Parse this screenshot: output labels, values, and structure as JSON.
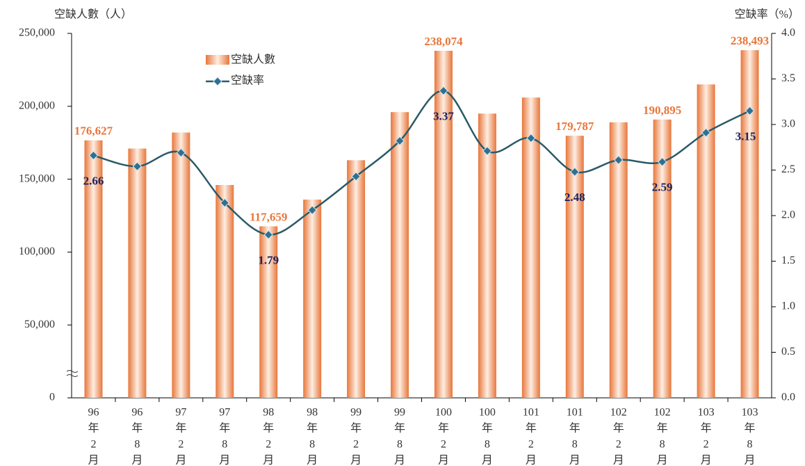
{
  "chart_data": {
    "type": "bar-line",
    "y_label": "空缺人數（人）",
    "y2_label": "空缺率（%）",
    "categories": [
      [
        "96",
        "年",
        "2",
        "月"
      ],
      [
        "96",
        "年",
        "8",
        "月"
      ],
      [
        "97",
        "年",
        "2",
        "月"
      ],
      [
        "97",
        "年",
        "8",
        "月"
      ],
      [
        "98",
        "年",
        "2",
        "月"
      ],
      [
        "98",
        "年",
        "8",
        "月"
      ],
      [
        "99",
        "年",
        "2",
        "月"
      ],
      [
        "99",
        "年",
        "8",
        "月"
      ],
      [
        "100",
        "年",
        "2",
        "月"
      ],
      [
        "100",
        "年",
        "8",
        "月"
      ],
      [
        "101",
        "年",
        "2",
        "月"
      ],
      [
        "101",
        "年",
        "8",
        "月"
      ],
      [
        "102",
        "年",
        "2",
        "月"
      ],
      [
        "102",
        "年",
        "8",
        "月"
      ],
      [
        "103",
        "年",
        "2",
        "月"
      ],
      [
        "103",
        "年",
        "8",
        "月"
      ]
    ],
    "series": [
      {
        "name": "空缺人數",
        "type": "bar",
        "color": "#e8763a",
        "values": [
          176627,
          171000,
          182000,
          146000,
          117659,
          136000,
          163000,
          196000,
          238074,
          195000,
          206000,
          179787,
          189000,
          190895,
          215000,
          238493
        ],
        "value_labels": [
          "176,627",
          null,
          null,
          null,
          "117,659",
          null,
          null,
          null,
          "238,074",
          null,
          null,
          "179,787",
          null,
          "190,895",
          null,
          "238,493"
        ]
      },
      {
        "name": "空缺率",
        "type": "line",
        "axis": "y2",
        "color": "#2b5a68",
        "values": [
          2.66,
          2.54,
          2.69,
          2.14,
          1.79,
          2.06,
          2.43,
          2.82,
          3.37,
          2.71,
          2.85,
          2.48,
          2.61,
          2.59,
          2.91,
          3.15
        ],
        "value_labels": [
          "2.66",
          null,
          null,
          null,
          "1.79",
          null,
          null,
          null,
          "3.37",
          null,
          null,
          "2.48",
          null,
          "2.59",
          null,
          "3.15"
        ]
      }
    ],
    "ylim": [
      0,
      250000
    ],
    "yticks": [
      0,
      {
        "value": 50000,
        "label": "50,000"
      },
      {
        "value": 100000,
        "label": "100,000"
      },
      {
        "value": 150000,
        "label": "150,000"
      },
      {
        "value": 200000,
        "label": "200,000"
      },
      {
        "value": 250000,
        "label": "250,000"
      }
    ],
    "y2lim": [
      0,
      4
    ],
    "y2ticks": [
      {
        "value": 0,
        "label": "0.0"
      },
      0.5,
      {
        "value": 1,
        "label": "1.0"
      },
      1.5,
      {
        "value": 2,
        "label": "2.0"
      },
      2.5,
      {
        "value": 3,
        "label": "3.0"
      },
      3.5,
      {
        "value": 4,
        "label": "4.0"
      }
    ],
    "grid": false
  }
}
